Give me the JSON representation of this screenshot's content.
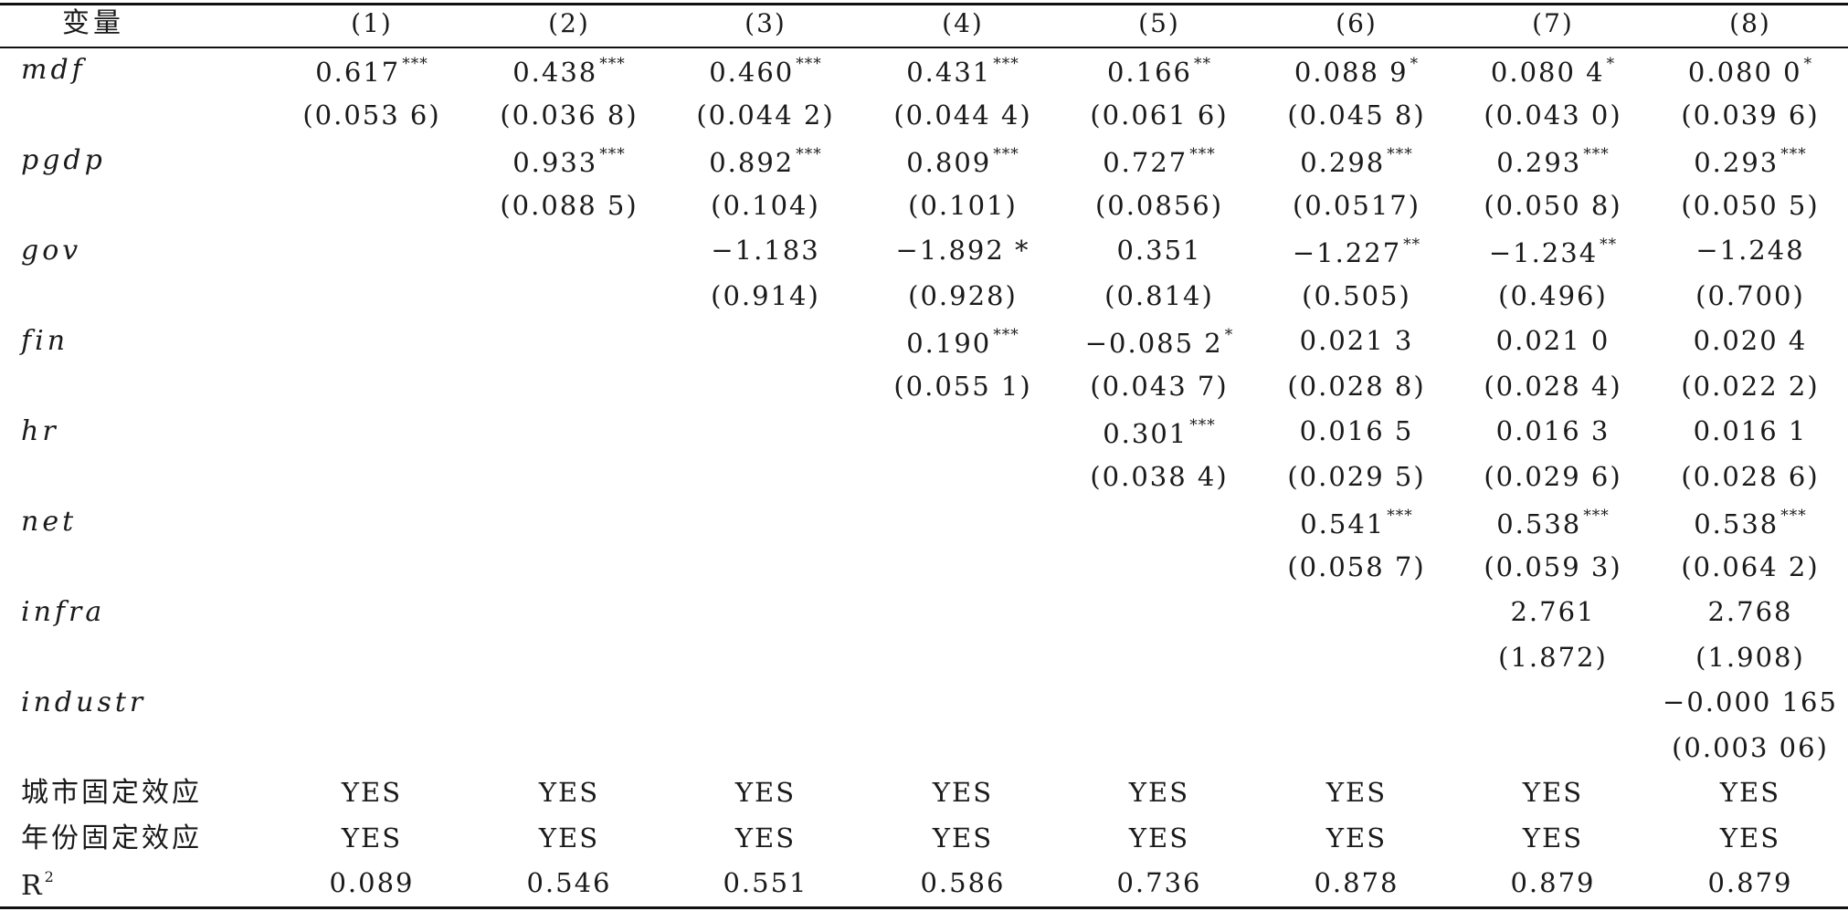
{
  "header": {
    "variable_label": "变量",
    "columns": [
      "(1)",
      "(2)",
      "(3)",
      "(4)",
      "(5)",
      "(6)",
      "(7)",
      "(8)"
    ]
  },
  "rows": [
    {
      "label": "mdf",
      "italic": true,
      "cells": [
        {
          "col": 1,
          "value": "0.617",
          "stars": "***"
        },
        {
          "col": 2,
          "value": "0.438",
          "stars": "***"
        },
        {
          "col": 3,
          "value": "0.460",
          "stars": "***"
        },
        {
          "col": 4,
          "value": "0.431",
          "stars": "***"
        },
        {
          "col": 5,
          "value": "0.166",
          "stars": "**"
        },
        {
          "col": 6,
          "value": "0.088 9",
          "stars": "*"
        },
        {
          "col": 7,
          "value": "0.080 4",
          "stars": "*"
        },
        {
          "col": 8,
          "value": "0.080 0",
          "stars": "*"
        }
      ]
    },
    {
      "label": "",
      "italic": false,
      "cells": [
        {
          "col": 1,
          "value": "(0.053 6)",
          "stars": ""
        },
        {
          "col": 2,
          "value": "(0.036 8)",
          "stars": ""
        },
        {
          "col": 3,
          "value": "(0.044 2)",
          "stars": ""
        },
        {
          "col": 4,
          "value": "(0.044 4)",
          "stars": ""
        },
        {
          "col": 5,
          "value": "(0.061 6)",
          "stars": ""
        },
        {
          "col": 6,
          "value": "(0.045 8)",
          "stars": ""
        },
        {
          "col": 7,
          "value": "(0.043 0)",
          "stars": ""
        },
        {
          "col": 8,
          "value": "(0.039 6)",
          "stars": ""
        }
      ]
    },
    {
      "label": "pgdp",
      "italic": true,
      "cells": [
        {
          "col": 2,
          "value": "0.933",
          "stars": "***"
        },
        {
          "col": 3,
          "value": "0.892",
          "stars": "***"
        },
        {
          "col": 4,
          "value": "0.809",
          "stars": "***"
        },
        {
          "col": 5,
          "value": "0.727",
          "stars": "***"
        },
        {
          "col": 6,
          "value": "0.298",
          "stars": "***"
        },
        {
          "col": 7,
          "value": "0.293",
          "stars": "***"
        },
        {
          "col": 8,
          "value": "0.293",
          "stars": "***"
        }
      ]
    },
    {
      "label": "",
      "italic": false,
      "cells": [
        {
          "col": 2,
          "value": "(0.088 5)",
          "stars": ""
        },
        {
          "col": 3,
          "value": "(0.104)",
          "stars": ""
        },
        {
          "col": 4,
          "value": "(0.101)",
          "stars": ""
        },
        {
          "col": 5,
          "value": "(0.0856)",
          "stars": ""
        },
        {
          "col": 6,
          "value": "(0.0517)",
          "stars": ""
        },
        {
          "col": 7,
          "value": "(0.050 8)",
          "stars": ""
        },
        {
          "col": 8,
          "value": "(0.050 5)",
          "stars": ""
        }
      ]
    },
    {
      "label": "gov",
      "italic": true,
      "cells": [
        {
          "col": 3,
          "value": "−1.183",
          "stars": ""
        },
        {
          "col": 4,
          "value": "−1.892 *",
          "stars": ""
        },
        {
          "col": 5,
          "value": "0.351",
          "stars": ""
        },
        {
          "col": 6,
          "value": "−1.227",
          "stars": "**"
        },
        {
          "col": 7,
          "value": "−1.234",
          "stars": "**"
        },
        {
          "col": 8,
          "value": "−1.248",
          "stars": ""
        }
      ]
    },
    {
      "label": "",
      "italic": false,
      "cells": [
        {
          "col": 3,
          "value": "(0.914)",
          "stars": ""
        },
        {
          "col": 4,
          "value": "(0.928)",
          "stars": ""
        },
        {
          "col": 5,
          "value": "(0.814)",
          "stars": ""
        },
        {
          "col": 6,
          "value": "(0.505)",
          "stars": ""
        },
        {
          "col": 7,
          "value": "(0.496)",
          "stars": ""
        },
        {
          "col": 8,
          "value": "(0.700)",
          "stars": ""
        }
      ]
    },
    {
      "label": "fin",
      "italic": true,
      "cells": [
        {
          "col": 4,
          "value": "0.190",
          "stars": "***"
        },
        {
          "col": 5,
          "value": "−0.085 2",
          "stars": "*"
        },
        {
          "col": 6,
          "value": "0.021 3",
          "stars": ""
        },
        {
          "col": 7,
          "value": "0.021 0",
          "stars": ""
        },
        {
          "col": 8,
          "value": "0.020 4",
          "stars": ""
        }
      ]
    },
    {
      "label": "",
      "italic": false,
      "cells": [
        {
          "col": 4,
          "value": "(0.055 1)",
          "stars": ""
        },
        {
          "col": 5,
          "value": "(0.043 7)",
          "stars": ""
        },
        {
          "col": 6,
          "value": "(0.028 8)",
          "stars": ""
        },
        {
          "col": 7,
          "value": "(0.028 4)",
          "stars": ""
        },
        {
          "col": 8,
          "value": "(0.022 2)",
          "stars": ""
        }
      ]
    },
    {
      "label": "hr",
      "italic": true,
      "cells": [
        {
          "col": 5,
          "value": "0.301",
          "stars": "***"
        },
        {
          "col": 6,
          "value": "0.016 5",
          "stars": ""
        },
        {
          "col": 7,
          "value": "0.016 3",
          "stars": ""
        },
        {
          "col": 8,
          "value": "0.016 1",
          "stars": ""
        }
      ]
    },
    {
      "label": "",
      "italic": false,
      "cells": [
        {
          "col": 5,
          "value": "(0.038 4)",
          "stars": ""
        },
        {
          "col": 6,
          "value": "(0.029 5)",
          "stars": ""
        },
        {
          "col": 7,
          "value": "(0.029 6)",
          "stars": ""
        },
        {
          "col": 8,
          "value": "(0.028 6)",
          "stars": ""
        }
      ]
    },
    {
      "label": "net",
      "italic": true,
      "cells": [
        {
          "col": 6,
          "value": "0.541",
          "stars": "***"
        },
        {
          "col": 7,
          "value": "0.538",
          "stars": "***"
        },
        {
          "col": 8,
          "value": "0.538",
          "stars": "***"
        }
      ]
    },
    {
      "label": "",
      "italic": false,
      "cells": [
        {
          "col": 6,
          "value": "(0.058 7)",
          "stars": ""
        },
        {
          "col": 7,
          "value": "(0.059 3)",
          "stars": ""
        },
        {
          "col": 8,
          "value": "(0.064 2)",
          "stars": ""
        }
      ]
    },
    {
      "label": "infra",
      "italic": true,
      "cells": [
        {
          "col": 7,
          "value": "2.761",
          "stars": ""
        },
        {
          "col": 8,
          "value": "2.768",
          "stars": ""
        }
      ]
    },
    {
      "label": "",
      "italic": false,
      "cells": [
        {
          "col": 7,
          "value": "(1.872)",
          "stars": ""
        },
        {
          "col": 8,
          "value": "(1.908)",
          "stars": ""
        }
      ]
    },
    {
      "label": "industr",
      "italic": true,
      "cells": [
        {
          "col": 8,
          "value": "−0.000 165",
          "stars": ""
        }
      ]
    },
    {
      "label": "",
      "italic": false,
      "cells": [
        {
          "col": 8,
          "value": "(0.003 06)",
          "stars": ""
        }
      ]
    },
    {
      "label": "城市固定效应",
      "italic": false,
      "cells": [
        {
          "col": 1,
          "value": "YES",
          "stars": ""
        },
        {
          "col": 2,
          "value": "YES",
          "stars": ""
        },
        {
          "col": 3,
          "value": "YES",
          "stars": ""
        },
        {
          "col": 4,
          "value": "YES",
          "stars": ""
        },
        {
          "col": 5,
          "value": "YES",
          "stars": ""
        },
        {
          "col": 6,
          "value": "YES",
          "stars": ""
        },
        {
          "col": 7,
          "value": "YES",
          "stars": ""
        },
        {
          "col": 8,
          "value": "YES",
          "stars": ""
        }
      ]
    },
    {
      "label": "年份固定效应",
      "italic": false,
      "cells": [
        {
          "col": 1,
          "value": "YES",
          "stars": ""
        },
        {
          "col": 2,
          "value": "YES",
          "stars": ""
        },
        {
          "col": 3,
          "value": "YES",
          "stars": ""
        },
        {
          "col": 4,
          "value": "YES",
          "stars": ""
        },
        {
          "col": 5,
          "value": "YES",
          "stars": ""
        },
        {
          "col": 6,
          "value": "YES",
          "stars": ""
        },
        {
          "col": 7,
          "value": "YES",
          "stars": ""
        },
        {
          "col": 8,
          "value": "YES",
          "stars": ""
        }
      ]
    },
    {
      "label": "R",
      "label_sup": "2",
      "italic": false,
      "cells": [
        {
          "col": 1,
          "value": "0.089",
          "stars": ""
        },
        {
          "col": 2,
          "value": "0.546",
          "stars": ""
        },
        {
          "col": 3,
          "value": "0.551",
          "stars": ""
        },
        {
          "col": 4,
          "value": "0.586",
          "stars": ""
        },
        {
          "col": 5,
          "value": "0.736",
          "stars": ""
        },
        {
          "col": 6,
          "value": "0.878",
          "stars": ""
        },
        {
          "col": 7,
          "value": "0.879",
          "stars": ""
        },
        {
          "col": 8,
          "value": "0.879",
          "stars": ""
        }
      ]
    }
  ]
}
